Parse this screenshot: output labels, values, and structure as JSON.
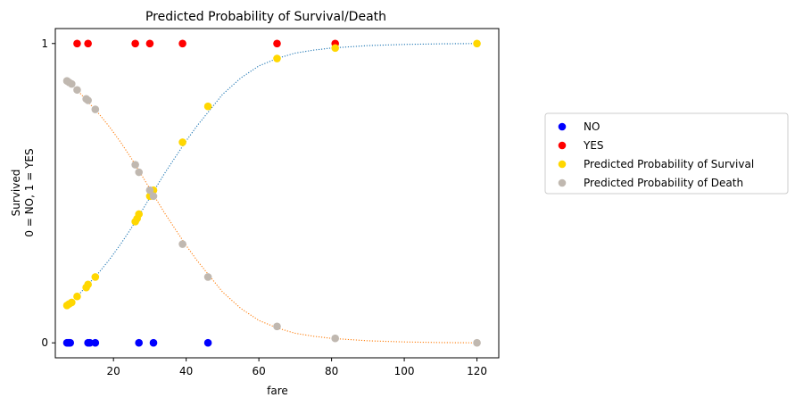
{
  "chart_data": {
    "type": "scatter",
    "title": "Predicted Probability of Survival/Death",
    "xlabel": "fare",
    "ylabel_lines": [
      "Survived",
      "0 = NO, 1 = YES"
    ],
    "xlim": [
      4,
      126
    ],
    "ylim": [
      -0.05,
      1.05
    ],
    "xticks": [
      20,
      40,
      60,
      80,
      100,
      120
    ],
    "yticks": [
      0,
      1
    ],
    "grid": false,
    "legend_position": "right",
    "series": [
      {
        "name": "NO",
        "kind": "points",
        "color": "#0000ff",
        "x": [
          7.2,
          7.5,
          7.8,
          8.1,
          13,
          13.5,
          15,
          27,
          31,
          46
        ],
        "y": [
          0,
          0,
          0,
          0,
          0,
          0,
          0,
          0,
          0,
          0
        ]
      },
      {
        "name": "YES",
        "kind": "points",
        "color": "#ff0000",
        "x": [
          10,
          13,
          26,
          30,
          39,
          65,
          81
        ],
        "y": [
          1,
          1,
          1,
          1,
          1,
          1,
          1
        ]
      },
      {
        "name": "Predicted Probability of Survival",
        "kind": "points",
        "color": "#ffd700",
        "x": [
          7.2,
          7.8,
          8.5,
          10,
          12.5,
          13,
          15,
          26,
          26.5,
          27,
          30,
          31,
          39,
          46,
          65,
          81,
          120
        ],
        "y": [
          0.125,
          0.13,
          0.135,
          0.155,
          0.185,
          0.195,
          0.22,
          0.405,
          0.415,
          0.43,
          0.49,
          0.51,
          0.67,
          0.79,
          0.95,
          0.985,
          1.0
        ]
      },
      {
        "name": "Predicted Probability of Death",
        "kind": "points",
        "color": "#c0b8b0",
        "x": [
          7.2,
          7.8,
          8.5,
          10,
          12.5,
          13,
          15,
          26,
          27,
          30,
          31,
          39,
          46,
          65,
          81,
          120
        ],
        "y": [
          0.875,
          0.87,
          0.865,
          0.845,
          0.815,
          0.81,
          0.78,
          0.595,
          0.57,
          0.51,
          0.49,
          0.33,
          0.22,
          0.055,
          0.015,
          0.0
        ]
      },
      {
        "kind": "curve",
        "color": "#1f77b4",
        "dashed": true,
        "x": [
          7,
          10,
          13,
          16,
          19,
          22,
          25,
          28,
          31,
          34,
          37,
          40,
          43,
          46,
          50,
          55,
          60,
          65,
          70,
          75,
          80,
          90,
          100,
          110,
          120
        ],
        "y": [
          0.125,
          0.155,
          0.195,
          0.235,
          0.28,
          0.33,
          0.385,
          0.445,
          0.505,
          0.565,
          0.62,
          0.675,
          0.725,
          0.77,
          0.83,
          0.885,
          0.925,
          0.95,
          0.968,
          0.978,
          0.985,
          0.993,
          0.997,
          0.999,
          1.0
        ]
      },
      {
        "kind": "curve",
        "color": "#ff7f0e",
        "dashed": true,
        "x": [
          7,
          10,
          13,
          16,
          19,
          22,
          25,
          28,
          31,
          34,
          37,
          40,
          43,
          46,
          50,
          55,
          60,
          65,
          70,
          75,
          80,
          90,
          100,
          110,
          120
        ],
        "y": [
          0.875,
          0.845,
          0.805,
          0.765,
          0.72,
          0.67,
          0.615,
          0.555,
          0.495,
          0.435,
          0.38,
          0.325,
          0.275,
          0.23,
          0.17,
          0.115,
          0.075,
          0.05,
          0.032,
          0.022,
          0.015,
          0.007,
          0.003,
          0.001,
          0.0
        ]
      }
    ]
  }
}
